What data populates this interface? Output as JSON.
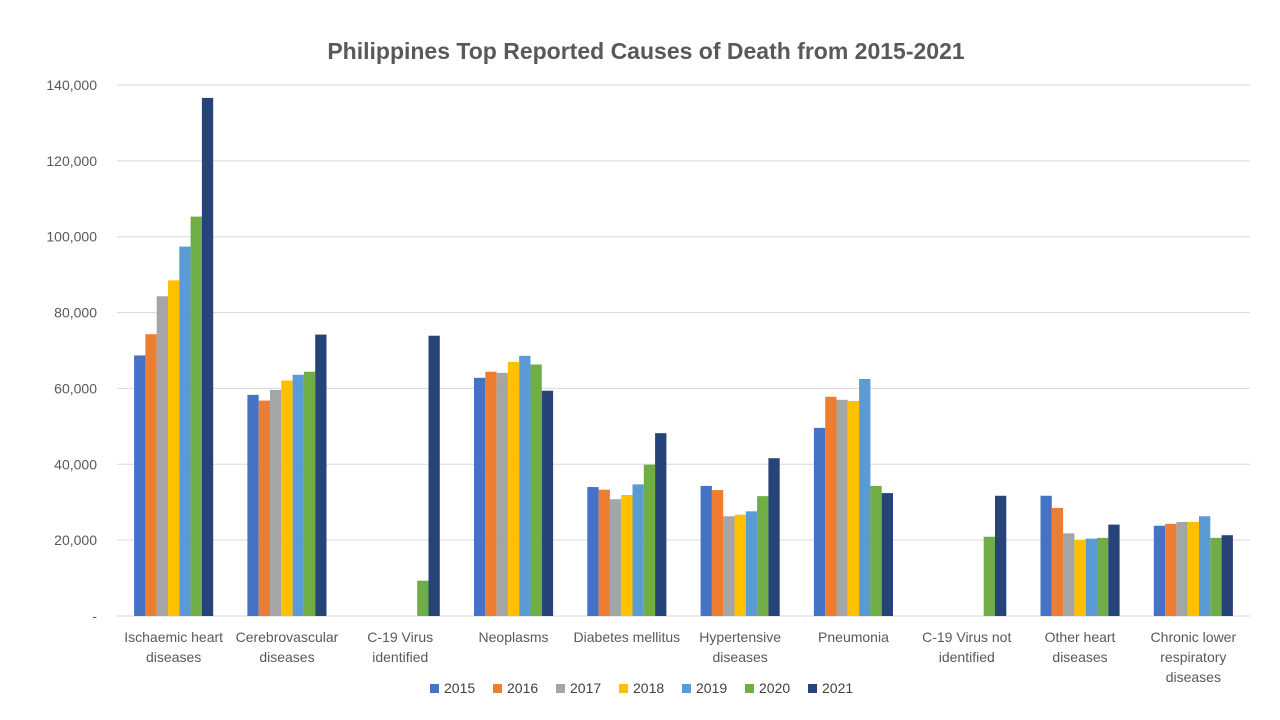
{
  "chart_data": {
    "type": "bar",
    "title": "Philippines Top Reported Causes of Death from 2015-2021",
    "xlabel": "",
    "ylabel": "",
    "ylim": [
      0,
      140000
    ],
    "yticks": [
      0,
      20000,
      40000,
      60000,
      80000,
      100000,
      120000,
      140000
    ],
    "ytick_labels": [
      "-",
      "20,000",
      "40,000",
      "60,000",
      "80,000",
      "100,000",
      "120,000",
      "140,000"
    ],
    "grid": true,
    "legend_position": "bottom",
    "categories": [
      [
        "Ischaemic heart",
        "diseases"
      ],
      [
        "Cerebrovascular",
        "diseases"
      ],
      [
        "C-19 Virus",
        "identified"
      ],
      [
        "Neoplasms"
      ],
      [
        "Diabetes mellitus"
      ],
      [
        "Hypertensive",
        "diseases"
      ],
      [
        "Pneumonia"
      ],
      [
        "C-19 Virus not",
        "identified"
      ],
      [
        "Other heart",
        "diseases"
      ],
      [
        "Chronic lower",
        "respiratory",
        "diseases"
      ]
    ],
    "series": [
      {
        "name": "2015",
        "color": "#4472C4",
        "values": [
          68700,
          58300,
          0,
          62800,
          34000,
          34300,
          49600,
          0,
          31700,
          23800
        ]
      },
      {
        "name": "2016",
        "color": "#ED7D31",
        "values": [
          74300,
          56800,
          0,
          64400,
          33300,
          33200,
          57800,
          0,
          28500,
          24300
        ]
      },
      {
        "name": "2017",
        "color": "#A5A5A5",
        "values": [
          84300,
          59600,
          0,
          64100,
          30800,
          26300,
          57000,
          0,
          21800,
          24800
        ]
      },
      {
        "name": "2018",
        "color": "#FFC000",
        "values": [
          88500,
          62100,
          0,
          67000,
          31900,
          26700,
          56700,
          0,
          20100,
          24800
        ]
      },
      {
        "name": "2019",
        "color": "#5B9BD5",
        "values": [
          97400,
          63600,
          0,
          68600,
          34700,
          27600,
          62500,
          0,
          20400,
          26300
        ]
      },
      {
        "name": "2020",
        "color": "#70AD47",
        "values": [
          105300,
          64400,
          9300,
          66300,
          39900,
          31600,
          34300,
          20900,
          20600,
          20600
        ]
      },
      {
        "name": "2021",
        "color": "#264478",
        "values": [
          136600,
          74200,
          73900,
          59400,
          48200,
          41600,
          32400,
          31700,
          24100,
          21300
        ]
      }
    ]
  }
}
